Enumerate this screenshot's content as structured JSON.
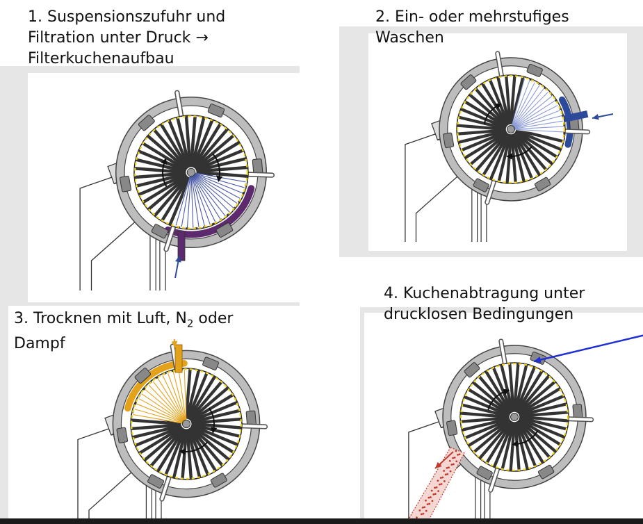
{
  "panels": [
    {
      "id": "p1",
      "caption": [
        {
          "text": "1. Suspensionszufuhr und"
        },
        {
          "text": "Filtration unter Druck",
          "arrow": "→"
        },
        {
          "text": "Filterkuchenaufbau"
        }
      ]
    },
    {
      "id": "p2",
      "caption": [
        {
          "text": "2. Ein- oder mehrstufiges"
        },
        {
          "text": "Waschen"
        }
      ]
    },
    {
      "id": "p3",
      "caption": [
        {
          "pre": "3. Trocknen mit Luft, N",
          "sub": "2",
          "post": " oder"
        },
        {
          "text": "Dampf"
        }
      ]
    },
    {
      "id": "p4",
      "caption": [
        {
          "text": "4. Kuchenabtragung unter"
        },
        {
          "text": "drucklosen Bedingungen"
        }
      ]
    }
  ],
  "colors": {
    "frame_gray": "#e6e6e6",
    "drum_dark": "#333333",
    "housing_gray": "#bdbdbd",
    "yellow_dots": "#f2d21b",
    "suspension_purple": "#5e2a6e",
    "wash_blue": "#2d4a9a",
    "drying_orange": "#e3a21a",
    "blow_arrow_blue": "#1f2fd6",
    "cake_red": "#c0392b"
  },
  "icons": [
    "drum-filter-icon",
    "feed-arrow-icon",
    "wash-arrow-icon",
    "steam-arrow-icon",
    "air-blow-arrow-icon",
    "cake-discharge-arrow-icon"
  ]
}
